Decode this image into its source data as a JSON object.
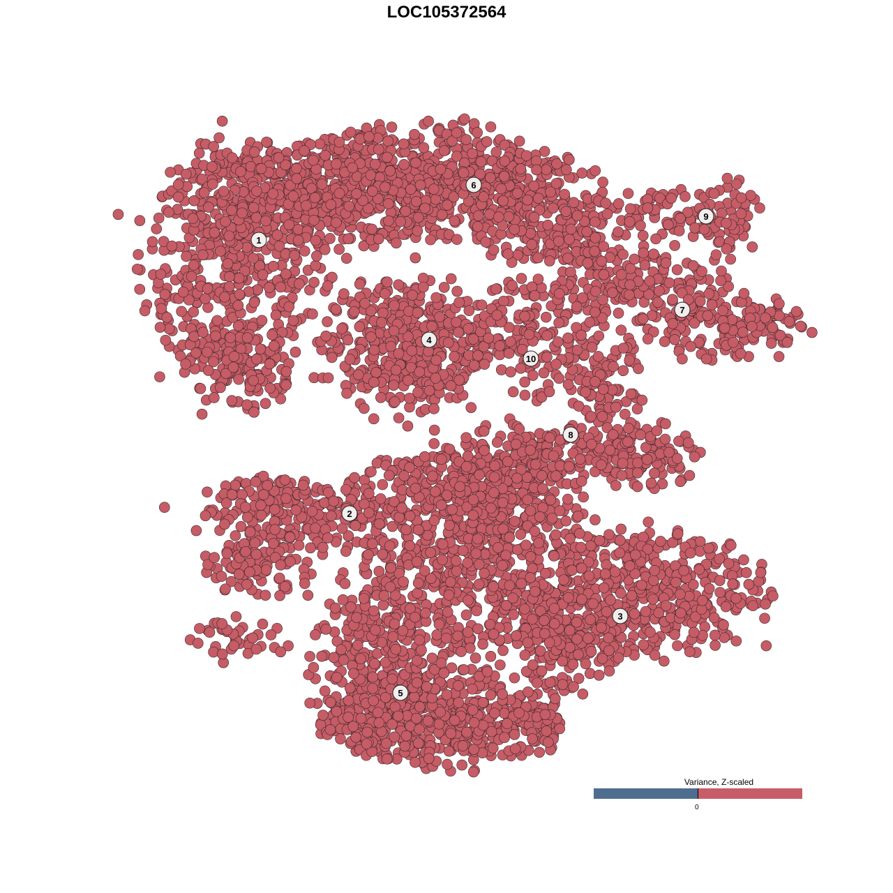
{
  "chart_data": {
    "type": "scatter",
    "title": "LOC105372564",
    "xlabel": "",
    "ylabel": "",
    "axes_visible": false,
    "grid": false,
    "xlim": [
      -64,
      64
    ],
    "ylim": [
      -64,
      64
    ],
    "point_color": "#c55c66",
    "point_edge_color": "#3b2628",
    "note_points": "all cells colored red (positive z-scaled variance)",
    "clusters": [
      {
        "label": "1",
        "label_pos": [
          -26.9,
          29.6
        ],
        "blobs": [
          [
            -30,
            26,
            7,
            9,
            500
          ],
          [
            -19,
            36,
            10,
            4,
            400
          ],
          [
            -29,
            11,
            4,
            3,
            100
          ]
        ]
      },
      {
        "label": "2",
        "label_pos": [
          -13.9,
          -9.6
        ],
        "blobs": [
          [
            -22,
            -9,
            7,
            2.5,
            200
          ],
          [
            -27,
            -17,
            4,
            2.5,
            100
          ],
          [
            -31,
            -28,
            4,
            2,
            40
          ]
        ]
      },
      {
        "label": "3",
        "label_pos": [
          24.9,
          -24.3
        ],
        "blobs": [
          [
            28,
            -21,
            9,
            5,
            450
          ],
          [
            17,
            -28,
            4,
            4,
            150
          ]
        ]
      },
      {
        "label": "4",
        "label_pos": [
          -2.5,
          15.3
        ],
        "blobs": [
          [
            -6,
            14.5,
            6,
            5,
            400
          ]
        ]
      },
      {
        "label": "5",
        "label_pos": [
          -6.6,
          -35.3
        ],
        "blobs": [
          [
            0,
            -39,
            9,
            3.5,
            500
          ],
          [
            -10,
            -32,
            5,
            6,
            250
          ]
        ]
      },
      {
        "label": "6",
        "label_pos": [
          3.9,
          37.5
        ],
        "blobs": [
          [
            -4,
            38,
            11,
            4.5,
            500
          ],
          [
            12,
            34,
            6,
            4,
            200
          ],
          [
            20,
            30,
            3,
            3,
            60
          ]
        ]
      },
      {
        "label": "7",
        "label_pos": [
          33.8,
          19.6
        ],
        "blobs": [
          [
            28,
            23,
            6,
            3,
            150
          ],
          [
            40,
            17,
            6,
            2.5,
            150
          ]
        ]
      },
      {
        "label": "8",
        "label_pos": [
          17.8,
          1.7
        ],
        "blobs": [
          [
            22,
            8,
            3,
            5,
            120
          ],
          [
            28,
            -1,
            5,
            2.5,
            120
          ],
          [
            13,
            0,
            5,
            2,
            80
          ]
        ]
      },
      {
        "label": "9",
        "label_pos": [
          37.2,
          33.0
        ],
        "blobs": [
          [
            32,
            33,
            7,
            2,
            80
          ],
          [
            40.5,
            32,
            2,
            3.5,
            50
          ]
        ]
      },
      {
        "label": "10",
        "label_pos": [
          12.1,
          12.6
        ],
        "blobs": [
          [
            11,
            18,
            5,
            3.5,
            120
          ],
          [
            12.5,
            12,
            2,
            3,
            40
          ]
        ]
      },
      {
        "label": "",
        "label_pos": null,
        "blobs": [
          [
            2,
            -16,
            10,
            8,
            700
          ],
          [
            6,
            -6,
            7,
            4,
            250
          ]
        ]
      }
    ],
    "legend": {
      "title": "Variance, Z-scaled",
      "tick_label": "0",
      "low_color": "#4f6d8f",
      "high_color": "#c75d68",
      "placement": "bottom-right"
    }
  }
}
